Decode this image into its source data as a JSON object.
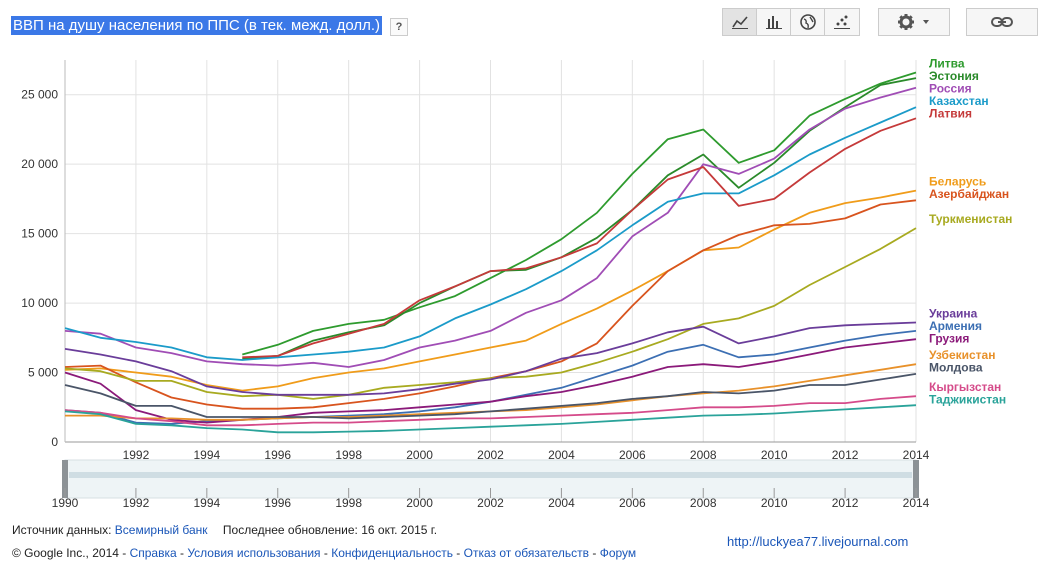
{
  "title": "ВВП на душу населения по ППС (в тек. межд. долл.)",
  "help_label": "?",
  "toolbar": {
    "icons": [
      "line-chart-icon",
      "bar-chart-icon",
      "globe-icon",
      "scatter-icon"
    ],
    "settings_icon": "gear-icon",
    "link_icon": "link-icon"
  },
  "chart_data": {
    "type": "line",
    "title": "ВВП на душу населения по ППС (в тек. межд. долл.)",
    "xlabel": "",
    "ylabel": "",
    "xlim": [
      1990,
      2014
    ],
    "ylim": [
      0,
      27500
    ],
    "yticks": [
      0,
      5000,
      10000,
      15000,
      20000,
      25000
    ],
    "ytick_labels": [
      "0",
      "5 000",
      "10 000",
      "15 000",
      "20 000",
      "25 000"
    ],
    "xticks": [
      1992,
      1994,
      1996,
      1998,
      2000,
      2002,
      2004,
      2006,
      2008,
      2010,
      2012,
      2014
    ],
    "xtick_labels": [
      "1992",
      "1994",
      "1996",
      "1998",
      "2000",
      "2002",
      "2004",
      "2006",
      "2008",
      "2010",
      "2012",
      "2014"
    ],
    "slider_ticks": [
      "1990",
      "1992",
      "1994",
      "1996",
      "1998",
      "2000",
      "2002",
      "2004",
      "2006",
      "2008",
      "2010",
      "2012",
      "2014"
    ],
    "x": [
      1990,
      1991,
      1992,
      1993,
      1994,
      1995,
      1996,
      1997,
      1998,
      1999,
      2000,
      2001,
      2002,
      2003,
      2004,
      2005,
      2006,
      2007,
      2008,
      2009,
      2010,
      2011,
      2012,
      2013,
      2014
    ],
    "series": [
      {
        "name": "Литва",
        "color": "#2e9b2e",
        "values": [
          null,
          null,
          null,
          null,
          null,
          6300,
          7000,
          8000,
          8500,
          8800,
          9700,
          10500,
          11800,
          13100,
          14600,
          16500,
          19300,
          21800,
          22500,
          20100,
          21000,
          23500,
          24700,
          25800,
          26600
        ]
      },
      {
        "name": "Эстония",
        "color": "#2a8a2a",
        "values": [
          null,
          null,
          null,
          null,
          null,
          6000,
          6200,
          7300,
          7900,
          8400,
          10000,
          11200,
          12300,
          12400,
          13300,
          14700,
          16700,
          19200,
          20700,
          18300,
          20100,
          22400,
          24100,
          25700,
          26200
        ]
      },
      {
        "name": "Россия",
        "color": "#a04db5",
        "values": [
          8000,
          7800,
          6800,
          6400,
          5800,
          5600,
          5500,
          5700,
          5400,
          5900,
          6800,
          7300,
          8000,
          9300,
          10200,
          11800,
          14800,
          16500,
          20000,
          19300,
          20400,
          22500,
          24000,
          24800,
          25500
        ]
      },
      {
        "name": "Казахстан",
        "color": "#1b9bc9",
        "values": [
          8200,
          7500,
          7200,
          6800,
          6100,
          5900,
          6100,
          6300,
          6500,
          6800,
          7600,
          8900,
          9900,
          11000,
          12300,
          13800,
          15600,
          17300,
          17900,
          17900,
          19200,
          20700,
          21900,
          23000,
          24100
        ]
      },
      {
        "name": "Латвия",
        "color": "#c53a3a",
        "values": [
          null,
          null,
          null,
          null,
          null,
          6100,
          6200,
          7100,
          7800,
          8500,
          10200,
          11200,
          12300,
          12500,
          13300,
          14300,
          16700,
          18900,
          19800,
          17000,
          17500,
          19400,
          21100,
          22400,
          23300
        ]
      },
      {
        "name": "Беларусь",
        "color": "#f09c1a",
        "values": [
          5200,
          5300,
          5000,
          4700,
          4100,
          3700,
          4000,
          4600,
          5000,
          5300,
          5800,
          6300,
          6800,
          7300,
          8500,
          9600,
          10900,
          12300,
          13800,
          14000,
          15300,
          16500,
          17200,
          17600,
          18100
        ]
      },
      {
        "name": "Азербайджан",
        "color": "#d8541e",
        "values": [
          5400,
          5500,
          4300,
          3200,
          2700,
          2400,
          2400,
          2500,
          2800,
          3100,
          3500,
          4000,
          4600,
          5100,
          5800,
          7100,
          9800,
          12300,
          13800,
          14900,
          15600,
          15700,
          16100,
          17100,
          17400
        ]
      },
      {
        "name": "Туркменистан",
        "color": "#a8aa20",
        "values": [
          5300,
          5100,
          4400,
          4400,
          3600,
          3300,
          3400,
          3100,
          3400,
          3900,
          4100,
          4300,
          4600,
          4700,
          5000,
          5700,
          6500,
          7400,
          8500,
          8900,
          9800,
          11300,
          12600,
          13900,
          15400
        ]
      },
      {
        "name": "Украина",
        "color": "#6a3d9a",
        "values": [
          6700,
          6300,
          5800,
          5100,
          4000,
          3600,
          3400,
          3400,
          3400,
          3500,
          3800,
          4200,
          4500,
          5100,
          6000,
          6400,
          7100,
          7900,
          8300,
          7100,
          7600,
          8200,
          8400,
          8500,
          8600
        ]
      },
      {
        "name": "Армения",
        "color": "#3c6fb3",
        "values": [
          2300,
          2100,
          1400,
          1300,
          1500,
          1600,
          1700,
          1800,
          1900,
          2000,
          2200,
          2500,
          2900,
          3400,
          3900,
          4700,
          5500,
          6500,
          7000,
          6100,
          6300,
          6800,
          7300,
          7700,
          8000
        ]
      },
      {
        "name": "Грузия",
        "color": "#8b1a7a",
        "values": [
          5000,
          4200,
          2300,
          1600,
          1400,
          1600,
          1800,
          2100,
          2200,
          2300,
          2500,
          2700,
          2900,
          3300,
          3600,
          4100,
          4700,
          5400,
          5600,
          5400,
          5800,
          6300,
          6800,
          7100,
          7400
        ]
      },
      {
        "name": "Узбекистан",
        "color": "#e8912a",
        "values": [
          1900,
          1900,
          1700,
          1700,
          1600,
          1600,
          1700,
          1800,
          1800,
          1900,
          2000,
          2100,
          2200,
          2300,
          2500,
          2700,
          3000,
          3300,
          3500,
          3700,
          4000,
          4400,
          4800,
          5200,
          5600
        ]
      },
      {
        "name": "Молдова",
        "color": "#4a5568",
        "values": [
          4100,
          3500,
          2600,
          2600,
          1800,
          1800,
          1800,
          1800,
          1700,
          1800,
          1900,
          2000,
          2200,
          2400,
          2600,
          2800,
          3100,
          3300,
          3600,
          3500,
          3700,
          4100,
          4100,
          4500,
          4900
        ]
      },
      {
        "name": "Кыргызстан",
        "color": "#d54b8a",
        "values": [
          2300,
          2100,
          1700,
          1500,
          1200,
          1200,
          1300,
          1400,
          1400,
          1500,
          1600,
          1700,
          1700,
          1800,
          1900,
          2000,
          2100,
          2300,
          2500,
          2500,
          2600,
          2800,
          2800,
          3100,
          3300
        ]
      },
      {
        "name": "Таджикистан",
        "color": "#2aa39a",
        "values": [
          2200,
          2000,
          1300,
          1200,
          1000,
          900,
          700,
          700,
          750,
          800,
          900,
          1000,
          1100,
          1200,
          1300,
          1450,
          1600,
          1750,
          1900,
          1950,
          2050,
          2200,
          2350,
          2500,
          2650
        ]
      }
    ]
  },
  "footer": {
    "source_label": "Источник данных:",
    "source_link": "Всемирный банк",
    "updated": "Последнее обновление: 16 окт. 2015 г.",
    "copyright": "© Google Inc., 2014 -",
    "links": [
      "Справка",
      "Условия использования",
      "Конфиденциальность",
      "Отказ от обязательств",
      "Форум"
    ],
    "separator": " - ",
    "watermark": "http://luckyea77.livejournal.com"
  }
}
